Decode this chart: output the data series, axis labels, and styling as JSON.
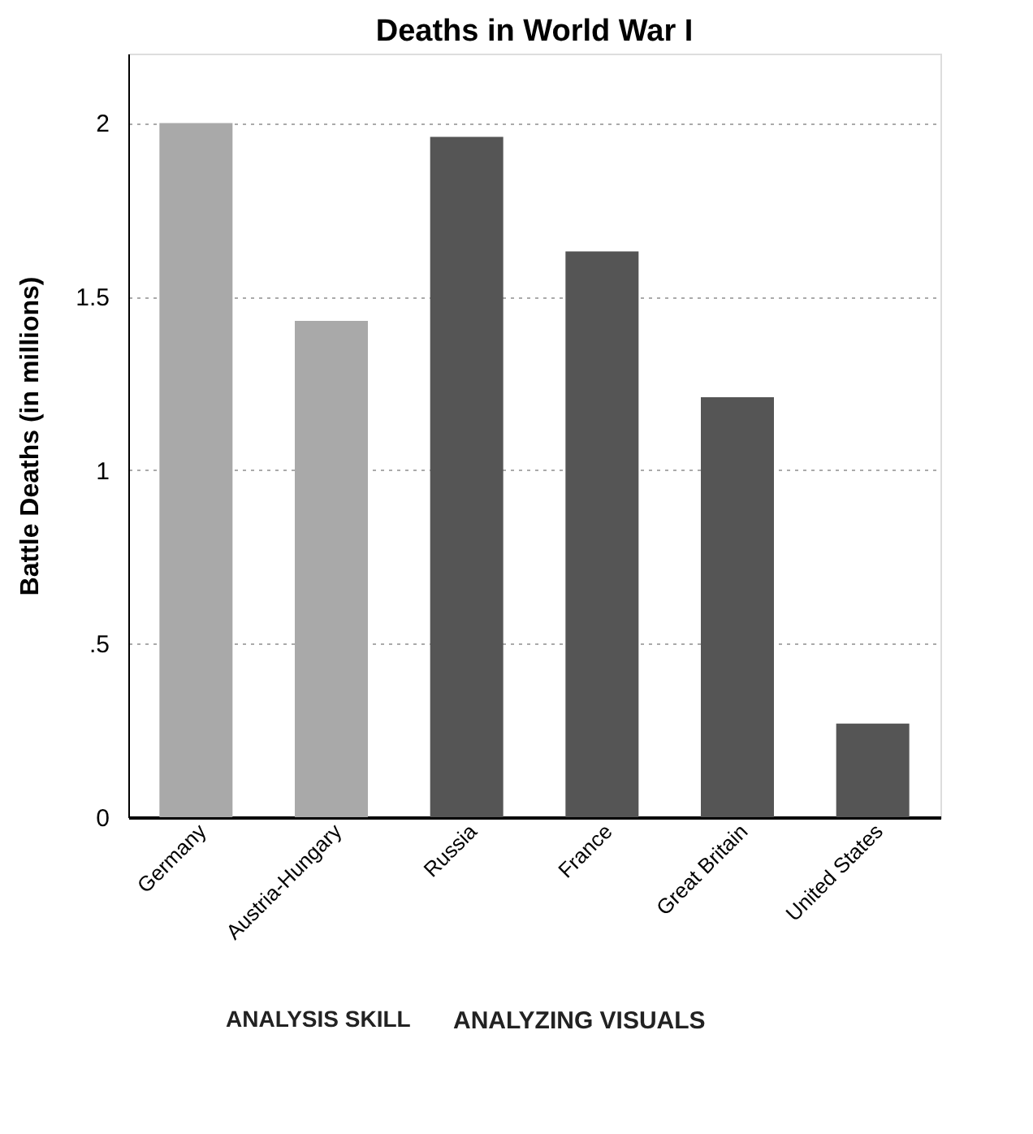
{
  "chart_data": {
    "type": "bar",
    "title": "Deaths in World War I",
    "ylabel": "Battle Deaths (in millions)",
    "categories": [
      "Germany",
      "Austria-Hungary",
      "Russia",
      "France",
      "Great Britain",
      "United States"
    ],
    "values": [
      2.0,
      1.43,
      1.96,
      1.63,
      1.21,
      0.27
    ],
    "colors": [
      "#a9a9a9",
      "#a9a9a9",
      "#555555",
      "#555555",
      "#555555",
      "#555555"
    ],
    "ylim": [
      0,
      2.2
    ],
    "yticks": [
      0,
      {
        "value": 0.5,
        "label": ".5"
      },
      1,
      1.5,
      2
    ],
    "grid": "y",
    "annotations": [
      "ANALYSIS SKILL",
      "ANALYZING VISUALS"
    ]
  }
}
